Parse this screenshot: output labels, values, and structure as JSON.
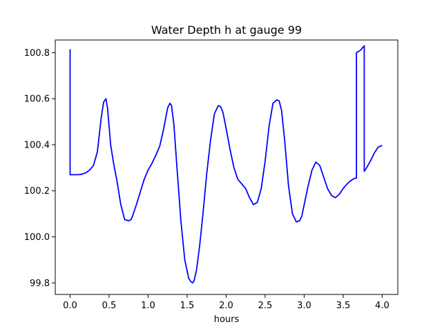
{
  "chart_data": {
    "type": "line",
    "title": "Water Depth h at gauge 99",
    "xlabel": "hours",
    "ylabel": "",
    "xlim": [
      -0.19,
      4.2
    ],
    "ylim": [
      99.75,
      100.855
    ],
    "grid": false,
    "legend": "none",
    "x_ticks": [
      0.0,
      0.5,
      1.0,
      1.5,
      2.0,
      2.5,
      3.0,
      3.5,
      4.0
    ],
    "x_tick_labels": [
      "0.0",
      "0.5",
      "1.0",
      "1.5",
      "2.0",
      "2.5",
      "3.0",
      "3.5",
      "4.0"
    ],
    "y_ticks": [
      99.8,
      100.0,
      100.2,
      100.4,
      100.6,
      100.8
    ],
    "y_tick_labels": [
      "99.8",
      "100.0",
      "100.2",
      "100.4",
      "100.6",
      "100.8"
    ],
    "series": [
      {
        "color": "#0000ff",
        "x": [
          0.0,
          0.0,
          0.05,
          0.1,
          0.15,
          0.2,
          0.25,
          0.3,
          0.35,
          0.4,
          0.43,
          0.46,
          0.48,
          0.52,
          0.56,
          0.6,
          0.65,
          0.7,
          0.75,
          0.78,
          0.8,
          0.85,
          0.9,
          0.95,
          1.0,
          1.05,
          1.1,
          1.15,
          1.2,
          1.25,
          1.28,
          1.3,
          1.33,
          1.37,
          1.42,
          1.47,
          1.52,
          1.55,
          1.57,
          1.59,
          1.62,
          1.66,
          1.7,
          1.75,
          1.8,
          1.85,
          1.9,
          1.93,
          1.96,
          2.0,
          2.05,
          2.1,
          2.15,
          2.2,
          2.25,
          2.3,
          2.35,
          2.4,
          2.45,
          2.5,
          2.55,
          2.6,
          2.65,
          2.68,
          2.71,
          2.75,
          2.8,
          2.85,
          2.9,
          2.94,
          2.97,
          3.0,
          3.05,
          3.1,
          3.15,
          3.2,
          3.25,
          3.3,
          3.35,
          3.4,
          3.45,
          3.5,
          3.55,
          3.6,
          3.65,
          3.67,
          3.67,
          3.72,
          3.77,
          3.77,
          3.8,
          3.85,
          3.9,
          3.95,
          4.0
        ],
        "y": [
          100.815,
          100.27,
          100.27,
          100.27,
          100.272,
          100.278,
          100.29,
          100.31,
          100.37,
          100.52,
          100.585,
          100.6,
          100.56,
          100.4,
          100.315,
          100.245,
          100.14,
          100.075,
          100.07,
          100.075,
          100.09,
          100.14,
          100.195,
          100.25,
          100.29,
          100.32,
          100.355,
          100.395,
          100.47,
          100.56,
          100.58,
          100.57,
          100.49,
          100.3,
          100.07,
          99.9,
          99.82,
          99.805,
          99.8,
          99.81,
          99.855,
          99.96,
          100.09,
          100.27,
          100.42,
          100.535,
          100.57,
          100.565,
          100.54,
          100.47,
          100.38,
          100.3,
          100.25,
          100.23,
          100.21,
          100.17,
          100.14,
          100.15,
          100.21,
          100.33,
          100.48,
          100.58,
          100.595,
          100.59,
          100.55,
          100.42,
          100.22,
          100.1,
          100.065,
          100.07,
          100.09,
          100.14,
          100.22,
          100.29,
          100.325,
          100.31,
          100.26,
          100.21,
          100.18,
          100.17,
          100.185,
          100.21,
          100.23,
          100.245,
          100.255,
          100.255,
          100.8,
          100.81,
          100.83,
          100.285,
          100.3,
          100.33,
          100.365,
          100.39,
          100.397
        ]
      }
    ]
  }
}
